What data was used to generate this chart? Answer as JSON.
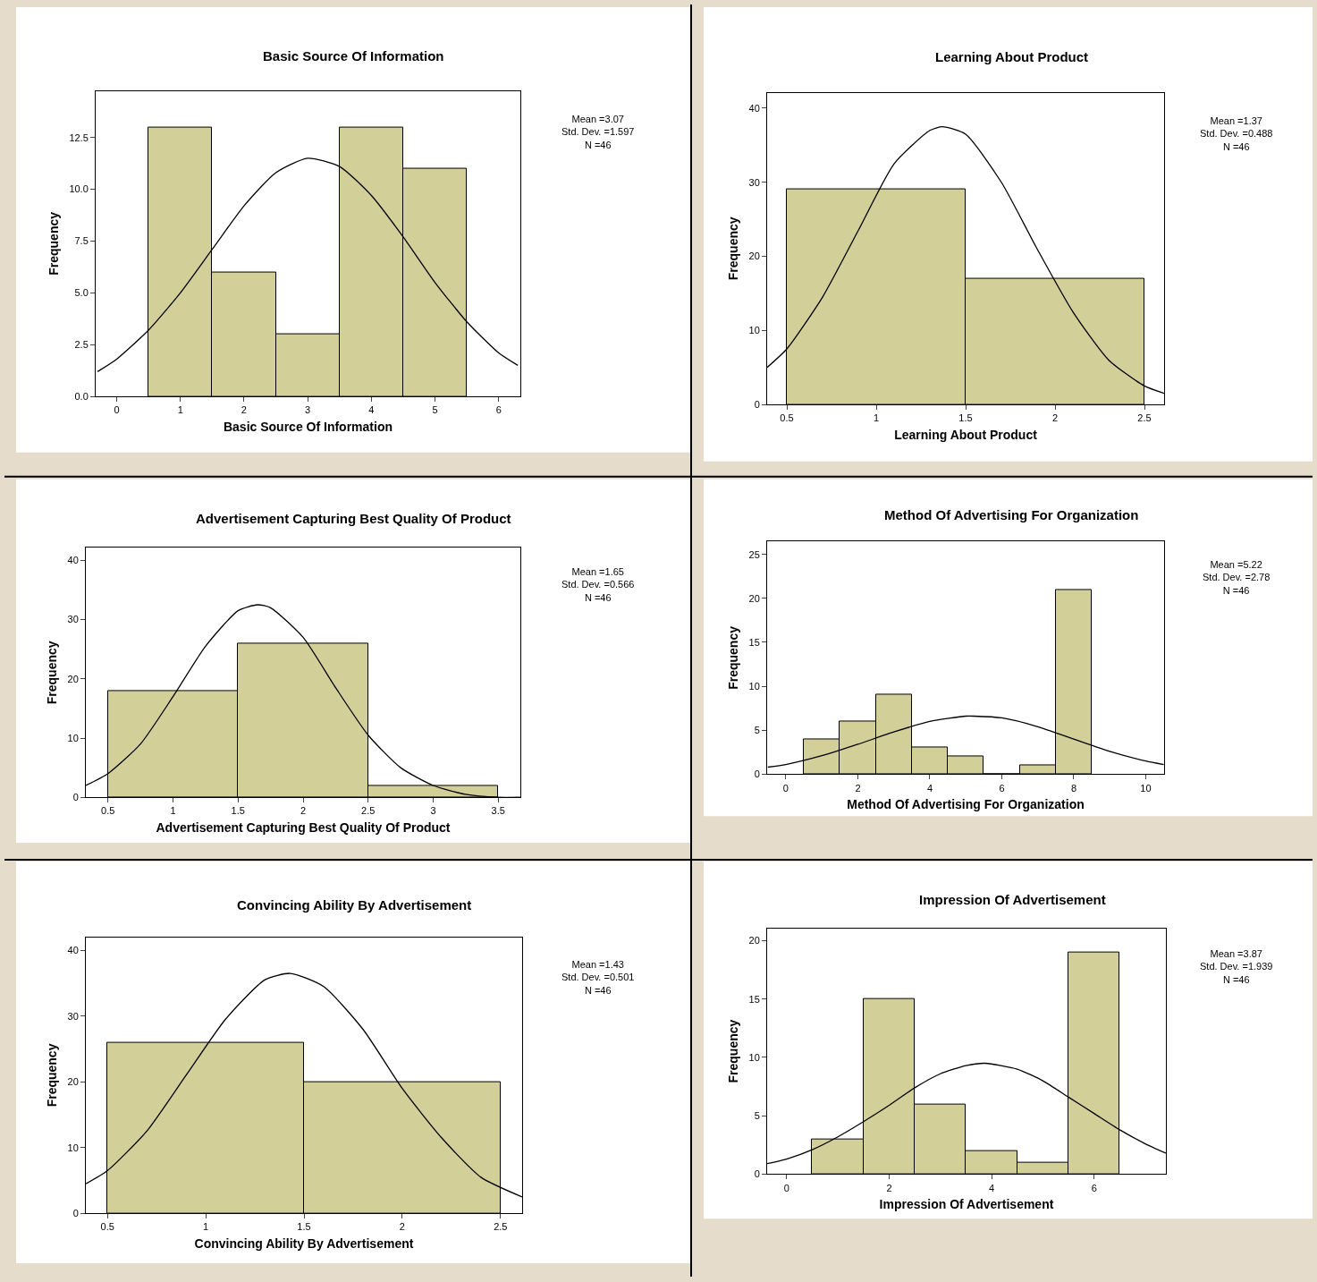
{
  "chart_data": [
    {
      "type": "histogram",
      "title": "Basic Source Of Information",
      "xlabel": "Basic Source Of Information",
      "ylabel": "Frequency",
      "annotations": [
        "Mean =3.07\nStd. Dev. =1.597\nN =46"
      ],
      "bins": [
        0.5,
        1.5,
        2.5,
        3.5,
        4.5,
        5.5
      ],
      "values": [
        13,
        6,
        3,
        13,
        11
      ],
      "color": "#d3cf99",
      "xlim": [
        -0.33,
        6.34
      ],
      "ylim": [
        0,
        14.75
      ],
      "xticks": [
        0,
        1,
        2,
        3,
        4,
        5,
        6
      ],
      "yticks": [
        {
          "value": 0,
          "label": "0.0"
        },
        2.5,
        {
          "value": 5,
          "label": "5.0"
        },
        7.5,
        {
          "value": 10,
          "label": "10.0"
        },
        12.5
      ],
      "series": [
        {
          "type": "line",
          "color": "#000000",
          "x": [
            -0.3,
            0,
            0.5,
            1,
            1.5,
            2,
            2.5,
            3,
            3.5,
            4,
            4.5,
            5,
            5.5,
            6,
            6.3
          ],
          "values": [
            1.2,
            1.8,
            3.2,
            5,
            7.1,
            9.2,
            10.8,
            11.5,
            11.1,
            9.7,
            7.7,
            5.5,
            3.6,
            2.1,
            1.5
          ]
        }
      ]
    },
    {
      "type": "histogram",
      "title": "Learning About Product",
      "xlabel": "Learning About Product",
      "ylabel": "Frequency",
      "annotations": [
        "Mean =1.37\nStd. Dev. =0.488\nN =46"
      ],
      "bins": [
        0.5,
        1.5,
        2.5
      ],
      "values": [
        29,
        17
      ],
      "color": "#d3cf99",
      "xlim": [
        0.39,
        2.61
      ],
      "ylim": [
        0,
        42.1
      ],
      "xticks": [
        0.5,
        1,
        1.5,
        2,
        2.5
      ],
      "yticks": [
        0,
        10,
        20,
        30,
        40
      ],
      "series": [
        {
          "type": "line",
          "color": "#000000",
          "x": [
            0.39,
            0.5,
            0.7,
            0.9,
            1.1,
            1.3,
            1.37,
            1.5,
            1.7,
            1.9,
            2.1,
            2.3,
            2.5,
            2.61
          ],
          "values": [
            5,
            7.5,
            14.5,
            23.5,
            32.5,
            37,
            37.5,
            36.5,
            30,
            21,
            12.5,
            6,
            2.5,
            1.5
          ]
        }
      ]
    },
    {
      "type": "histogram",
      "title": "Advertisement Capturing Best Quality Of Product",
      "xlabel": "Advertisement Capturing Best Quality Of Product",
      "ylabel": "Frequency",
      "annotations": [
        "Mean =1.65\nStd. Dev. =0.566\nN =46"
      ],
      "bins": [
        0.5,
        1.5,
        2.5,
        3.5
      ],
      "values": [
        18,
        26,
        2
      ],
      "color": "#d3cf99",
      "xlim": [
        0.33,
        3.67
      ],
      "ylim": [
        0,
        42.1
      ],
      "xticks": [
        0.5,
        1,
        1.5,
        2,
        2.5,
        3,
        3.5
      ],
      "yticks": [
        0,
        10,
        20,
        30,
        40
      ],
      "series": [
        {
          "type": "line",
          "color": "#000000",
          "x": [
            0.33,
            0.5,
            0.75,
            1,
            1.25,
            1.5,
            1.65,
            1.75,
            2,
            2.25,
            2.5,
            2.75,
            3,
            3.25,
            3.5,
            3.67
          ],
          "values": [
            2,
            4,
            9,
            17,
            25.5,
            31.5,
            32.5,
            32,
            27,
            18.5,
            10.5,
            5,
            2,
            0.5,
            0,
            0
          ]
        }
      ]
    },
    {
      "type": "histogram",
      "title": "Method Of Advertising For Organization",
      "xlabel": "Method Of Advertising For Organization",
      "ylabel": "Frequency",
      "annotations": [
        "Mean =5.22\nStd. Dev. =2.78\nN =46"
      ],
      "bins": [
        0.5,
        1.5,
        2.5,
        3.5,
        4.5,
        5.5,
        6.5,
        7.5,
        8.5
      ],
      "values": [
        4,
        6,
        9,
        3,
        2,
        0,
        1,
        21
      ],
      "color": "#d3cf99",
      "xlim": [
        -0.52,
        10.51
      ],
      "ylim": [
        0,
        26.45
      ],
      "xticks": [
        0,
        2,
        4,
        6,
        8,
        10
      ],
      "yticks": [
        0,
        5,
        10,
        15,
        20,
        25
      ],
      "series": [
        {
          "type": "line",
          "color": "#000000",
          "x": [
            -0.5,
            0,
            1,
            2,
            3,
            4,
            5,
            5.22,
            6,
            7,
            8,
            9,
            10,
            10.5
          ],
          "values": [
            0.8,
            1.1,
            2.1,
            3.4,
            4.8,
            6,
            6.6,
            6.6,
            6.4,
            5.4,
            4,
            2.6,
            1.5,
            1.1
          ]
        }
      ]
    },
    {
      "type": "histogram",
      "title": "Convincing Ability By Advertisement",
      "xlabel": "Convincing Ability By Advertisement",
      "ylabel": "Frequency",
      "annotations": [
        "Mean =1.43\nStd. Dev. =0.501\nN =46"
      ],
      "bins": [
        0.5,
        1.5,
        2.5
      ],
      "values": [
        26,
        20
      ],
      "color": "#d3cf99",
      "xlim": [
        0.39,
        2.61
      ],
      "ylim": [
        0,
        42.0
      ],
      "xticks": [
        0.5,
        1,
        1.5,
        2,
        2.5
      ],
      "yticks": [
        0,
        10,
        20,
        30,
        40
      ],
      "series": [
        {
          "type": "line",
          "color": "#000000",
          "x": [
            0.39,
            0.5,
            0.7,
            0.9,
            1.1,
            1.3,
            1.43,
            1.6,
            1.8,
            2,
            2.2,
            2.4,
            2.61
          ],
          "values": [
            4.5,
            6.5,
            12.5,
            21,
            29.5,
            35.5,
            36.5,
            34.5,
            28,
            19,
            11.5,
            5.5,
            2.5
          ]
        }
      ]
    },
    {
      "type": "histogram",
      "title": "Impression Of Advertisement",
      "xlabel": "Impression Of Advertisement",
      "ylabel": "Frequency",
      "annotations": [
        "Mean =3.87\nStd. Dev. =1.939\nN =46"
      ],
      "bins": [
        0.5,
        1.5,
        2.5,
        3.5,
        4.5,
        5.5,
        6.5
      ],
      "values": [
        3,
        15,
        6,
        2,
        1,
        19
      ],
      "color": "#d3cf99",
      "xlim": [
        -0.38,
        7.4
      ],
      "ylim": [
        0,
        21.06
      ],
      "xticks": [
        0,
        2,
        4,
        6
      ],
      "yticks": [
        0,
        5,
        10,
        15,
        20
      ],
      "series": [
        {
          "type": "line",
          "color": "#000000",
          "x": [
            -0.38,
            0,
            0.5,
            1,
            1.5,
            2,
            2.5,
            3,
            3.5,
            3.87,
            4.5,
            5,
            5.5,
            6,
            6.5,
            7,
            7.4
          ],
          "values": [
            0.9,
            1.3,
            2.1,
            3.2,
            4.5,
            5.9,
            7.4,
            8.6,
            9.3,
            9.5,
            9,
            8,
            6.6,
            5.2,
            3.8,
            2.6,
            1.8
          ]
        }
      ]
    }
  ]
}
